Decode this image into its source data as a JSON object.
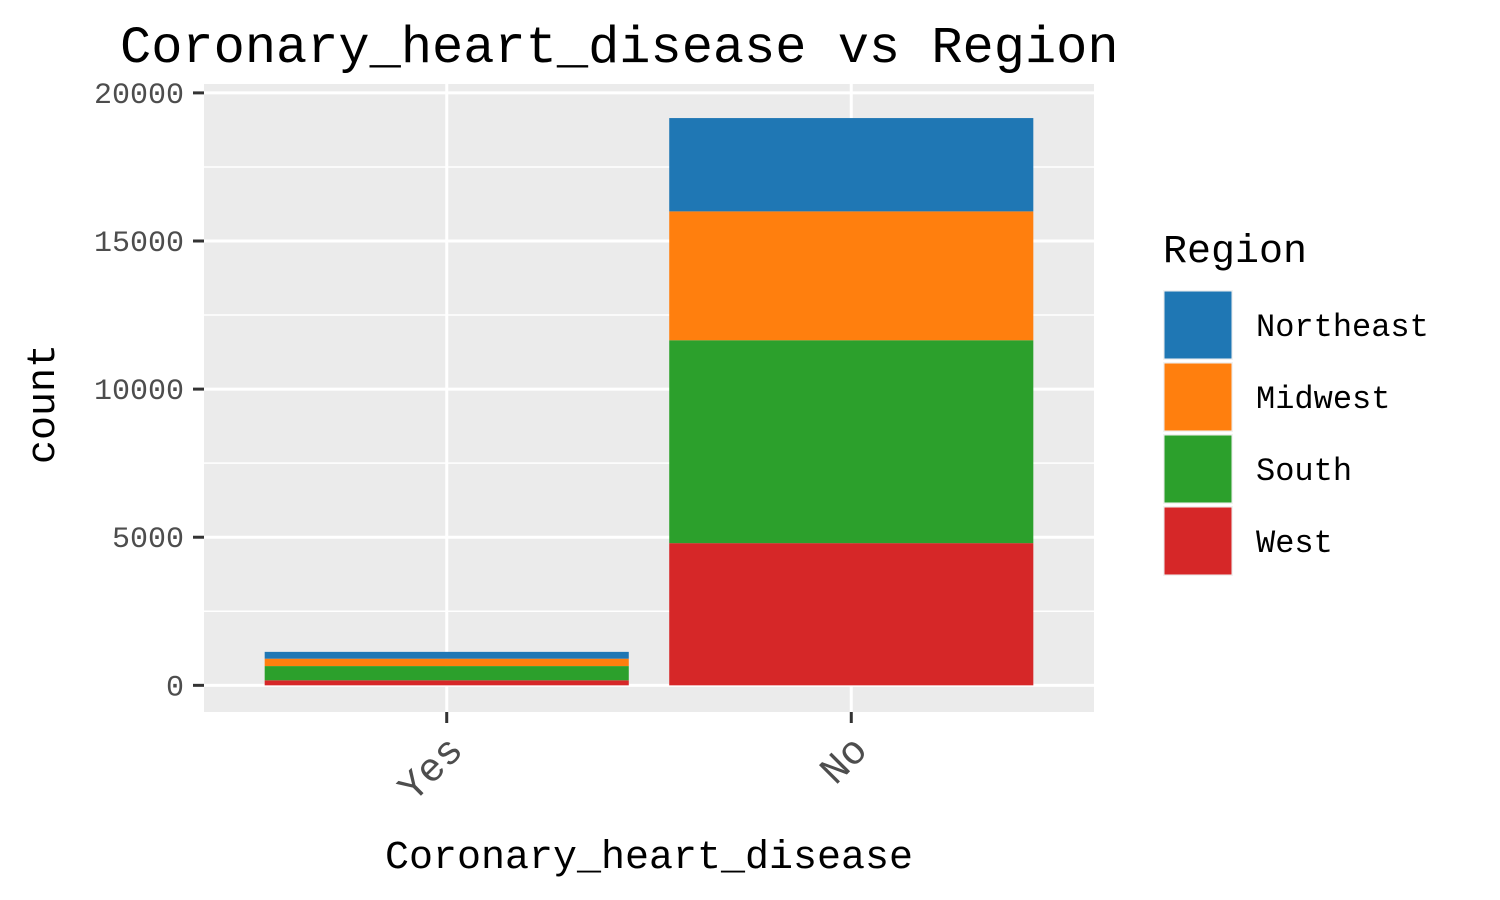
{
  "chart_data": {
    "type": "bar",
    "stacked": true,
    "title": "Coronary_heart_disease vs Region",
    "xlabel": "Coronary_heart_disease",
    "ylabel": "count",
    "categories": [
      "Yes",
      "No"
    ],
    "ylim": [
      -900,
      20300
    ],
    "yticks": [
      0,
      5000,
      10000,
      15000,
      20000
    ],
    "ytick_labels": [
      "0",
      "5000",
      "10000",
      "15000",
      "20000"
    ],
    "grid": true,
    "legend": {
      "title": "Region",
      "position": "right"
    },
    "series": [
      {
        "name": "Northeast",
        "color": "#1f77b4",
        "values": [
          230,
          3150
        ]
      },
      {
        "name": "Midwest",
        "color": "#ff7f0e",
        "values": [
          250,
          4350
        ]
      },
      {
        "name": "South",
        "color": "#2ca02c",
        "values": [
          480,
          6850
        ]
      },
      {
        "name": "West",
        "color": "#d62728",
        "values": [
          170,
          4800
        ]
      }
    ]
  }
}
